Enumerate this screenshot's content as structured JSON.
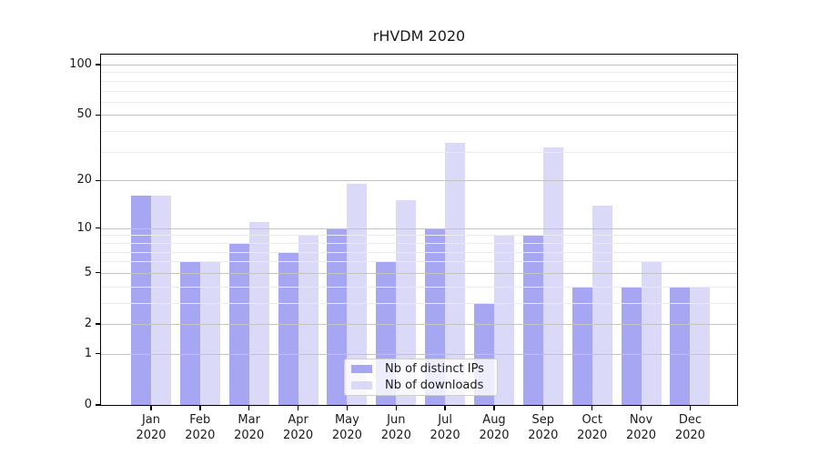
{
  "title": "rHVDM 2020",
  "chart_data": {
    "type": "bar",
    "title": "rHVDM 2020",
    "categories": [
      "Jan 2020",
      "Feb 2020",
      "Mar 2020",
      "Apr 2020",
      "May 2020",
      "Jun 2020",
      "Jul 2020",
      "Aug 2020",
      "Sep 2020",
      "Oct 2020",
      "Nov 2020",
      "Dec 2020"
    ],
    "months": [
      "Jan",
      "Feb",
      "Mar",
      "Apr",
      "May",
      "Jun",
      "Jul",
      "Aug",
      "Sep",
      "Oct",
      "Nov",
      "Dec"
    ],
    "year": "2020",
    "series": [
      {
        "name": "Nb of distinct IPs",
        "color": "#a6a6f2",
        "values": [
          16,
          6,
          8,
          7,
          10,
          6,
          10,
          3,
          9,
          4,
          4,
          4
        ]
      },
      {
        "name": "Nb of downloads",
        "color": "#dadaf8",
        "values": [
          16,
          6,
          11,
          9,
          19,
          15,
          34,
          9,
          32,
          14,
          6,
          4
        ]
      }
    ],
    "yscale": "log1p",
    "ylim": [
      0,
      114.6
    ],
    "y_major_ticks": [
      100,
      50,
      20,
      10,
      5,
      2,
      1,
      0
    ],
    "y_minor_gridlines": [
      90,
      80,
      70,
      60,
      40,
      30,
      9,
      8,
      7,
      6,
      4,
      3
    ],
    "grid": "both",
    "legend_position": "lower center"
  },
  "colors": {
    "bar_dark": "#a6a6f2",
    "bar_light": "#dadaf8",
    "grid_major": "#c3c3c3",
    "grid_minor": "#ebebeb",
    "spine": "#000000",
    "text": "#1a1a1a"
  },
  "legend": {
    "items": [
      {
        "label": "Nb of distinct IPs"
      },
      {
        "label": "Nb of downloads"
      }
    ]
  }
}
